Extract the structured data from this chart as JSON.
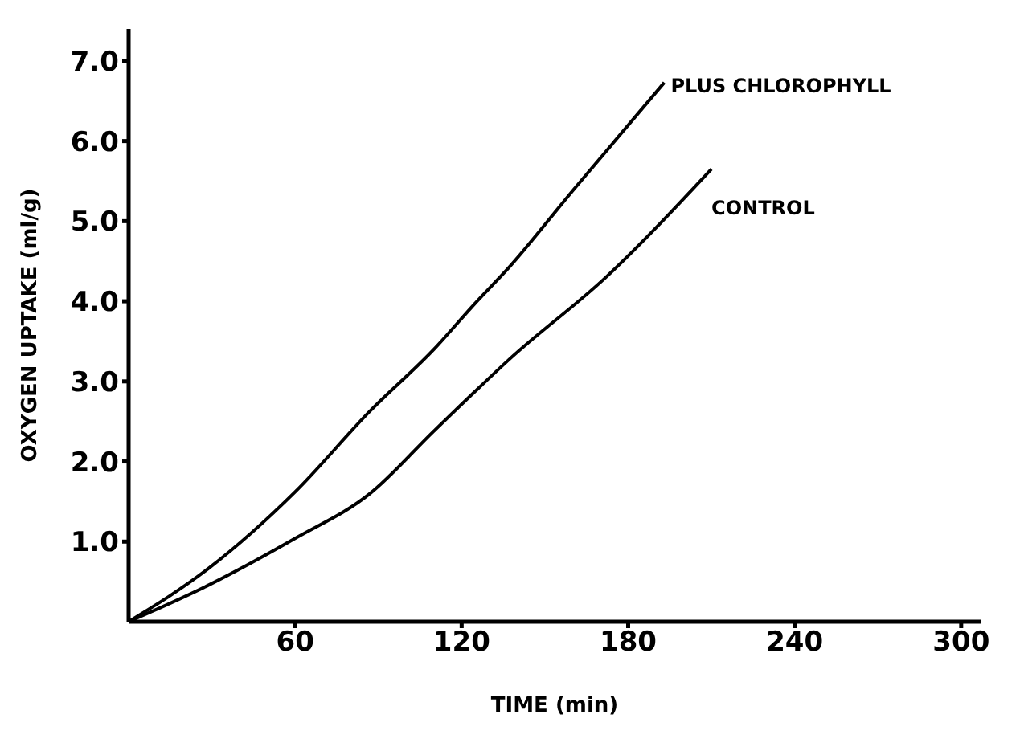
{
  "chart_data": {
    "type": "line",
    "xlabel": "TIME (min)",
    "ylabel": "OXYGEN UPTAKE (ml/g)",
    "xlim": [
      0,
      307
    ],
    "xticks": [
      60,
      120,
      180,
      240,
      300
    ],
    "ylim": [
      0,
      7.4
    ],
    "yticks": [
      {
        "value": 1,
        "label": "1.0"
      },
      {
        "value": 2,
        "label": "2.0"
      },
      {
        "value": 3,
        "label": "3.0"
      },
      {
        "value": 4,
        "label": "4.0"
      },
      {
        "value": 5,
        "label": "5.0"
      },
      {
        "value": 6,
        "label": "6.0"
      },
      {
        "value": 7,
        "label": "7.0"
      }
    ],
    "grid": false,
    "marker": "none",
    "line_style": "solid",
    "series": [
      {
        "name": "PLUS CHLOROPHYLL",
        "color": "#000000",
        "x": [
          0,
          29,
          60,
          87,
          110,
          125,
          137,
          160,
          193
        ],
        "values": [
          0,
          0.67,
          1.62,
          2.63,
          3.4,
          3.98,
          4.42,
          5.38,
          6.73
        ]
      },
      {
        "name": "CONTROL",
        "color": "#000000",
        "x": [
          0,
          29,
          60,
          87,
          110,
          125,
          137,
          172,
          210
        ],
        "values": [
          0,
          0.46,
          1.04,
          1.6,
          2.38,
          2.88,
          3.27,
          4.3,
          5.65
        ]
      }
    ]
  }
}
